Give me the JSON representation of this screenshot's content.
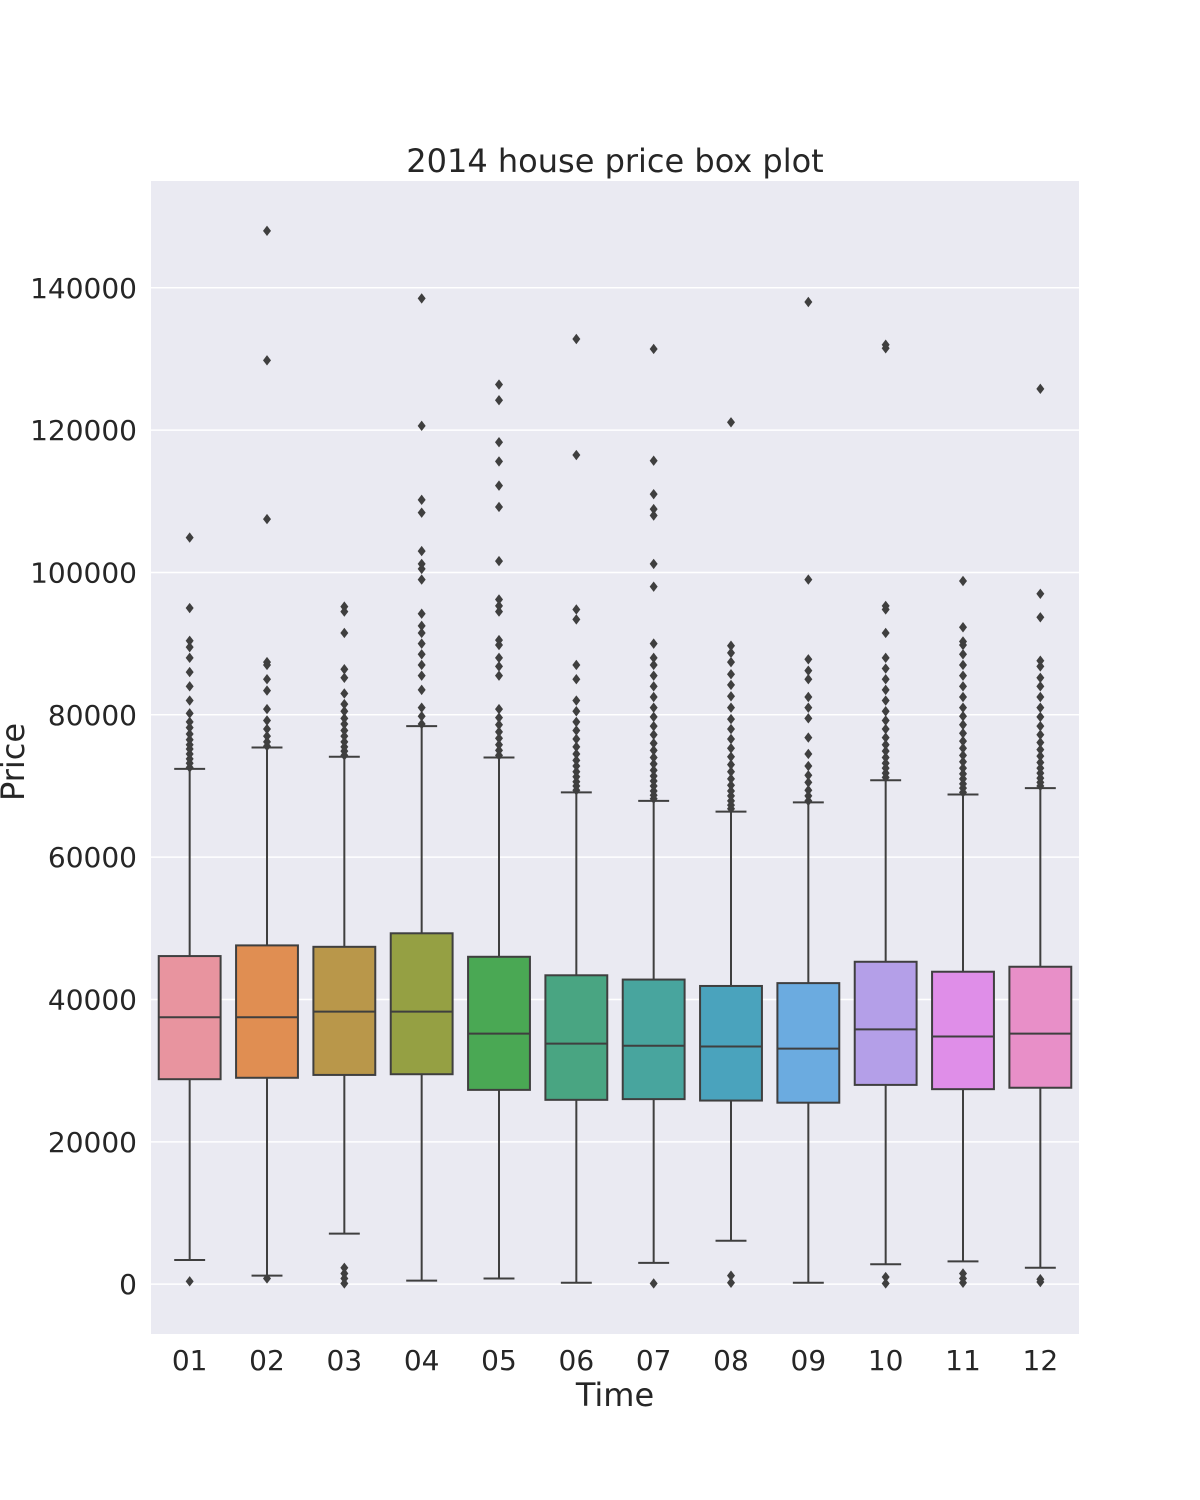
{
  "chart_data": {
    "type": "box",
    "title": "2014 house price box plot",
    "xlabel": "Time",
    "ylabel": "Price",
    "ylim": [
      -7000,
      155000
    ],
    "yticks": [
      0,
      20000,
      40000,
      60000,
      80000,
      100000,
      120000,
      140000
    ],
    "yticklabels": [
      "0",
      "20000",
      "40000",
      "60000",
      "80000",
      "100000",
      "120000",
      "140000"
    ],
    "grid": true,
    "categories": [
      "01",
      "02",
      "03",
      "04",
      "05",
      "06",
      "07",
      "08",
      "09",
      "10",
      "11",
      "12"
    ],
    "boxes": [
      {
        "label": "01",
        "color": "#e8949f",
        "q1": 28800,
        "median": 37500,
        "q3": 46100,
        "whislo": 3400,
        "whishi": 72400,
        "fliers": [
          400,
          72600,
          73200,
          73800,
          74500,
          75200,
          75800,
          76500,
          77300,
          78200,
          79000,
          80200,
          82000,
          84000,
          86000,
          88000,
          89500,
          90400,
          95000,
          104900
        ]
      },
      {
        "label": "02",
        "color": "#e08e52",
        "q1": 29000,
        "median": 37500,
        "q3": 47600,
        "whislo": 1200,
        "whishi": 75400,
        "fliers": [
          800,
          75600,
          76200,
          77000,
          78000,
          79200,
          80800,
          83400,
          85000,
          87000,
          87400,
          107500,
          129800,
          148000
        ]
      },
      {
        "label": "03",
        "color": "#b9974a",
        "q1": 29400,
        "median": 38300,
        "q3": 47400,
        "whislo": 7100,
        "whishi": 74100,
        "fliers": [
          100,
          800,
          1500,
          2300,
          74300,
          74900,
          75500,
          76200,
          77000,
          77800,
          78700,
          79500,
          80500,
          81500,
          83000,
          85200,
          86400,
          91500,
          94500,
          95200
        ]
      },
      {
        "label": "04",
        "color": "#95a043",
        "q1": 29500,
        "median": 38300,
        "q3": 49300,
        "whislo": 500,
        "whishi": 78400,
        "fliers": [
          78700,
          79800,
          81000,
          83500,
          85500,
          87000,
          88500,
          90000,
          91500,
          92500,
          94200,
          99000,
          100500,
          101200,
          103000,
          108400,
          110200,
          120600,
          138500
        ]
      },
      {
        "label": "05",
        "color": "#4aa854",
        "q1": 27300,
        "median": 35200,
        "q3": 46000,
        "whislo": 800,
        "whishi": 74000,
        "fliers": [
          74300,
          75000,
          75800,
          76700,
          77600,
          78600,
          79600,
          80800,
          85500,
          86800,
          88000,
          89800,
          90500,
          94500,
          95300,
          96200,
          101600,
          109200,
          112200,
          115600,
          118300,
          124200,
          126400
        ]
      },
      {
        "label": "06",
        "color": "#49a582",
        "q1": 25900,
        "median": 33800,
        "q3": 43400,
        "whislo": 200,
        "whishi": 69100,
        "fliers": [
          69400,
          70000,
          70600,
          71300,
          72000,
          72800,
          73600,
          74500,
          75500,
          76600,
          77800,
          79000,
          80500,
          82000,
          85000,
          87000,
          93400,
          94800,
          116500,
          132800
        ]
      },
      {
        "label": "07",
        "color": "#48a59e",
        "q1": 26000,
        "median": 33500,
        "q3": 42800,
        "whislo": 3000,
        "whishi": 67900,
        "fliers": [
          100,
          68200,
          68700,
          69300,
          70000,
          70700,
          71400,
          72200,
          73100,
          74000,
          75000,
          76000,
          77200,
          78400,
          79700,
          81000,
          82500,
          84000,
          85500,
          87000,
          88000,
          90000,
          98000,
          101200,
          108000,
          108900,
          111000,
          115700,
          131400
        ]
      },
      {
        "label": "08",
        "color": "#4aa3bd",
        "q1": 25800,
        "median": 33400,
        "q3": 41900,
        "whislo": 6100,
        "whishi": 66400,
        "fliers": [
          200,
          1200,
          66800,
          67300,
          67900,
          68600,
          69300,
          70100,
          71000,
          72000,
          73000,
          74100,
          75300,
          76600,
          78000,
          79400,
          81000,
          82600,
          84200,
          85700,
          87400,
          88700,
          89700,
          121100
        ]
      },
      {
        "label": "09",
        "color": "#6babe0",
        "q1": 25500,
        "median": 33100,
        "q3": 42300,
        "whislo": 200,
        "whishi": 67700,
        "fliers": [
          67900,
          68600,
          69400,
          70500,
          71500,
          72800,
          74500,
          76800,
          79500,
          81000,
          82500,
          85000,
          86200,
          87800,
          99000,
          138000
        ]
      },
      {
        "label": "10",
        "color": "#b49fe8",
        "q1": 28000,
        "median": 35800,
        "q3": 45300,
        "whislo": 2800,
        "whishi": 70800,
        "fliers": [
          100,
          1000,
          71200,
          71800,
          72500,
          73200,
          74000,
          74900,
          75800,
          76800,
          78000,
          79200,
          80500,
          82000,
          83500,
          85000,
          86500,
          88000,
          91500,
          94800,
          95300,
          131500,
          132000
        ]
      },
      {
        "label": "11",
        "color": "#df8ee8",
        "q1": 27400,
        "median": 34800,
        "q3": 43900,
        "whislo": 3200,
        "whishi": 68800,
        "fliers": [
          200,
          800,
          1500,
          69100,
          69700,
          70300,
          71000,
          71700,
          72500,
          73400,
          74300,
          75300,
          76300,
          77400,
          78600,
          79800,
          81000,
          82500,
          84000,
          85500,
          87000,
          88500,
          89800,
          90300,
          92300,
          98800
        ]
      },
      {
        "label": "12",
        "color": "#e88fc8",
        "q1": 27600,
        "median": 35200,
        "q3": 44600,
        "whislo": 2300,
        "whishi": 69700,
        "fliers": [
          300,
          700,
          70000,
          70500,
          71100,
          71800,
          72500,
          73300,
          74200,
          75100,
          76100,
          77200,
          78400,
          79700,
          81000,
          82500,
          84000,
          85200,
          86800,
          87600,
          93700,
          97000,
          125800
        ]
      }
    ]
  }
}
